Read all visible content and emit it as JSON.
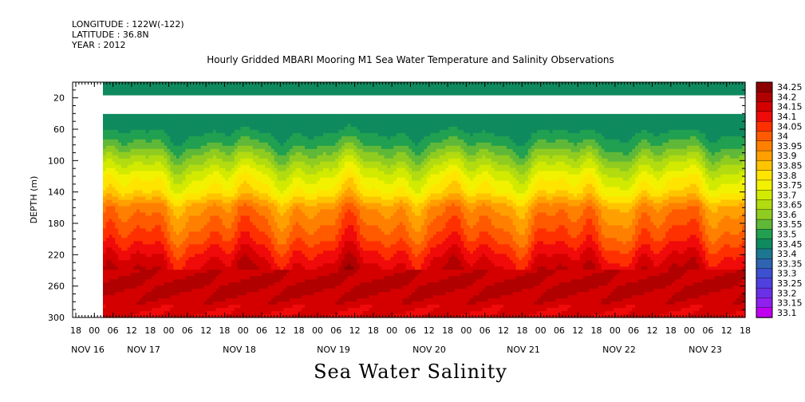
{
  "header": {
    "longitude": "LONGITUDE : 122W(-122)",
    "latitude": "LATITUDE : 36.8N",
    "year": "YEAR : 2012"
  },
  "chart_data": {
    "type": "heatmap",
    "title": "Hourly Gridded MBARI Mooring M1 Sea Water Temperature and Salinity Observations",
    "bottom_title": "Sea Water Salinity",
    "ylabel": "DEPTH (m)",
    "y_ticks": [
      20,
      60,
      100,
      140,
      180,
      220,
      260,
      300
    ],
    "ylim": [
      300,
      0
    ],
    "x_hour_ticks": [
      "18",
      "00",
      "06",
      "12",
      "18",
      "00",
      "06",
      "12",
      "18",
      "00",
      "06",
      "12",
      "18",
      "00",
      "06",
      "12",
      "18",
      "00",
      "06",
      "12",
      "18",
      "00",
      "06",
      "12",
      "18",
      "00",
      "06",
      "12",
      "18",
      "00",
      "06",
      "12",
      "18",
      "00",
      "06",
      "12",
      "18"
    ],
    "x_day_labels": [
      "NOV 16",
      "NOV 17",
      "NOV 18",
      "NOV 19",
      "NOV 20",
      "NOV 21",
      "NOV 22",
      "NOV 23"
    ],
    "colorbar": {
      "levels": [
        "34.25",
        "34.2",
        "34.15",
        "34.1",
        "34.05",
        "34",
        "33.95",
        "33.9",
        "33.85",
        "33.8",
        "33.75",
        "33.7",
        "33.65",
        "33.6",
        "33.55",
        "33.5",
        "33.45",
        "33.4",
        "33.35",
        "33.3",
        "33.25",
        "33.2",
        "33.15",
        "33.1"
      ],
      "colors": [
        "#8b0000",
        "#b00000",
        "#d40000",
        "#f00a0a",
        "#ff3000",
        "#ff5a00",
        "#ff8000",
        "#ffa000",
        "#ffc400",
        "#ffe400",
        "#f2f200",
        "#d2ea00",
        "#b2dc10",
        "#90cc20",
        "#60b838",
        "#20a050",
        "#0f8a5f",
        "#1b7890",
        "#2e64b0",
        "#3c50d0",
        "#5040e0",
        "#6a30e8",
        "#9020f0",
        "#c000f0"
      ]
    },
    "profile": {
      "depth_m": [
        5,
        40,
        60,
        80,
        100,
        120,
        140,
        160,
        180,
        200,
        220,
        240,
        260,
        280,
        300
      ],
      "salinity": [
        33.45,
        33.47,
        33.48,
        33.55,
        33.65,
        33.75,
        33.82,
        33.95,
        34.0,
        34.05,
        34.12,
        34.18,
        34.22,
        34.18,
        34.15
      ]
    },
    "missing_data": [
      {
        "depth_range_m": [
          15,
          40
        ],
        "time": "all"
      }
    ],
    "grid": false,
    "legend": "right colorbar"
  }
}
